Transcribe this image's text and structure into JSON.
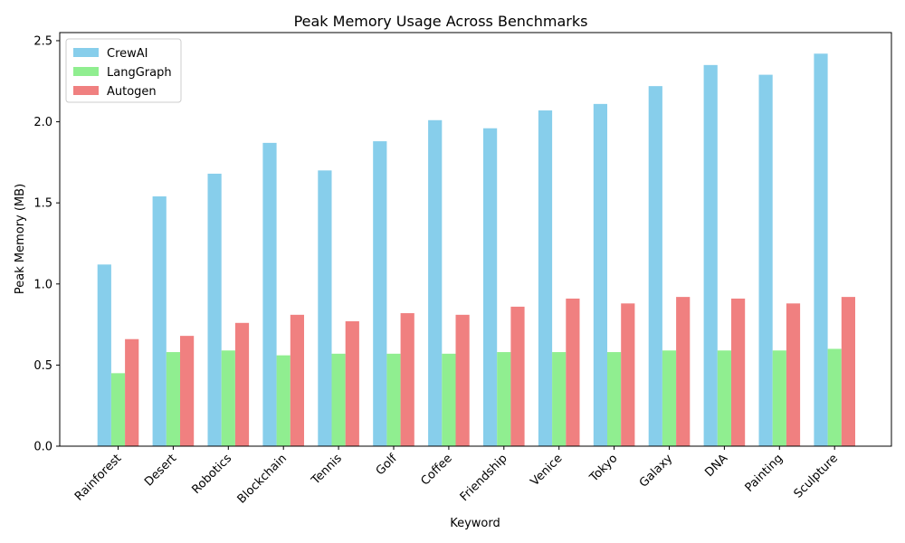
{
  "chart_data": {
    "type": "bar",
    "title": "Peak Memory Usage Across Benchmarks",
    "xlabel": "Keyword",
    "ylabel": "Peak Memory (MB)",
    "ylim": [
      0,
      2.55
    ],
    "yticks": [
      "0.0",
      "0.5",
      "1.0",
      "1.5",
      "2.0",
      "2.5"
    ],
    "ytick_values": [
      0,
      0.5,
      1.0,
      1.5,
      2.0,
      2.5
    ],
    "grid": false,
    "legend_position": "top-left",
    "categories": [
      "Rainforest",
      "Desert",
      "Robotics",
      "Blockchain",
      "Tennis",
      "Golf",
      "Coffee",
      "Friendship",
      "Venice",
      "Tokyo",
      "Galaxy",
      "DNA",
      "Painting",
      "Sculpture"
    ],
    "series": [
      {
        "name": "CrewAI",
        "color": "#87CEEB",
        "values": [
          1.12,
          1.54,
          1.68,
          1.87,
          1.7,
          1.88,
          2.01,
          1.96,
          2.07,
          2.11,
          2.22,
          2.35,
          2.29,
          2.42
        ]
      },
      {
        "name": "LangGraph",
        "color": "#90EE90",
        "values": [
          0.45,
          0.58,
          0.59,
          0.56,
          0.57,
          0.57,
          0.57,
          0.58,
          0.58,
          0.58,
          0.59,
          0.59,
          0.59,
          0.6
        ]
      },
      {
        "name": "Autogen",
        "color": "#F08080",
        "values": [
          0.66,
          0.68,
          0.76,
          0.81,
          0.77,
          0.82,
          0.81,
          0.86,
          0.91,
          0.88,
          0.92,
          0.91,
          0.88,
          0.92
        ]
      }
    ]
  }
}
